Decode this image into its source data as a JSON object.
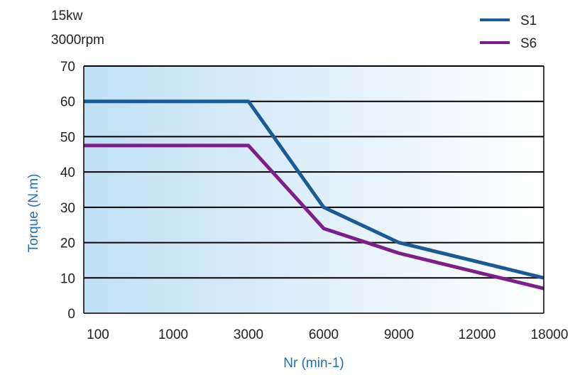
{
  "colors": {
    "s1": "#1b5a94",
    "s6": "#7d1f8a",
    "axis_label": "#1f6fb5",
    "grid": "#000000",
    "bg_left": "#bfe0f5",
    "bg_right": "#ffffff"
  },
  "chart_data": {
    "type": "line",
    "annotations": [
      "15kw",
      "3000rpm"
    ],
    "xlabel": "Nr (min-1)",
    "ylabel": "Torque (N.m)",
    "categories": [
      "100",
      "1000",
      "3000",
      "6000",
      "9000",
      "12000",
      "18000"
    ],
    "ylim": [
      0,
      70
    ],
    "yticks": [
      "0",
      "10",
      "20",
      "30",
      "40",
      "50",
      "60",
      "70"
    ],
    "grid": true,
    "legend_position": "top-right",
    "series": [
      {
        "name": "S1",
        "color": "#1b5a94",
        "points": [
          {
            "x": 100,
            "y": 60
          },
          {
            "x": 3000,
            "y": 60
          },
          {
            "x": 6000,
            "y": 30
          },
          {
            "x": 9000,
            "y": 20
          },
          {
            "x": 18000,
            "y": 10
          }
        ]
      },
      {
        "name": "S6",
        "color": "#7d1f8a",
        "points": [
          {
            "x": 100,
            "y": 47.5
          },
          {
            "x": 3000,
            "y": 47.5
          },
          {
            "x": 6000,
            "y": 24
          },
          {
            "x": 9000,
            "y": 17
          },
          {
            "x": 18000,
            "y": 7
          }
        ]
      }
    ]
  }
}
